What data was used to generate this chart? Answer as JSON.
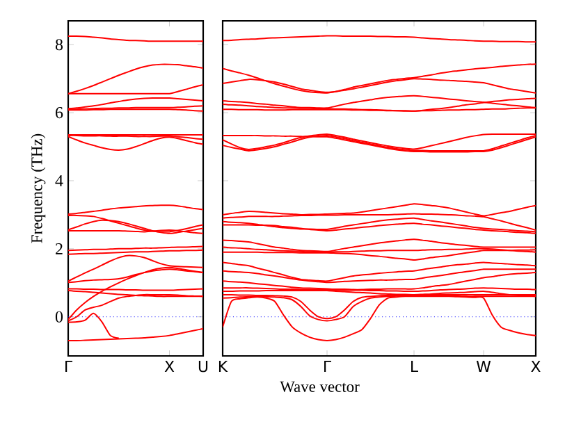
{
  "chart_data": [
    {
      "type": "line",
      "ylabel": "Frequency (THz)",
      "ylim": [
        -1.15,
        8.7
      ],
      "categories": [
        "Γ",
        null,
        null,
        null,
        null,
        null,
        null,
        null,
        null,
        null,
        null,
        null,
        "X",
        null,
        null,
        null,
        "U"
      ],
      "yticks": [
        0,
        2,
        4,
        6,
        8
      ],
      "grid": false,
      "ref_lines": [
        {
          "axis": "y",
          "value": 0,
          "color": "#0000ff",
          "line_style": "dotted"
        }
      ],
      "series": [
        {
          "color": "#ff0000",
          "values": [
            8.25,
            8.25,
            8.24,
            8.22,
            8.2,
            8.17,
            8.15,
            8.13,
            8.12,
            8.11,
            8.1,
            8.1,
            8.1,
            8.1,
            8.1,
            8.1,
            8.1
          ]
        },
        {
          "color": "#ff0000",
          "values": [
            6.56,
            6.63,
            6.71,
            6.8,
            6.9,
            7.0,
            7.1,
            7.19,
            7.28,
            7.35,
            7.4,
            7.42,
            7.42,
            7.41,
            7.38,
            7.35,
            7.31
          ]
        },
        {
          "color": "#ff0000",
          "values": [
            6.56,
            6.56,
            6.56,
            6.56,
            6.56,
            6.56,
            6.56,
            6.56,
            6.56,
            6.56,
            6.56,
            6.56,
            6.56,
            6.62,
            6.69,
            6.76,
            6.82
          ]
        },
        {
          "color": "#ff0000",
          "values": [
            6.12,
            6.14,
            6.17,
            6.2,
            6.24,
            6.29,
            6.33,
            6.37,
            6.4,
            6.42,
            6.43,
            6.43,
            6.43,
            6.41,
            6.39,
            6.37,
            6.35
          ]
        },
        {
          "color": "#ff0000",
          "values": [
            6.1,
            6.1,
            6.11,
            6.12,
            6.13,
            6.13,
            6.14,
            6.14,
            6.15,
            6.15,
            6.15,
            6.15,
            6.15,
            6.16,
            6.17,
            6.19,
            6.2
          ]
        },
        {
          "color": "#ff0000",
          "values": [
            6.08,
            6.08,
            6.08,
            6.09,
            6.09,
            6.1,
            6.1,
            6.1,
            6.1,
            6.1,
            6.1,
            6.1,
            6.1,
            6.09,
            6.08,
            6.06,
            6.05
          ]
        },
        {
          "color": "#ff0000",
          "values": [
            5.35,
            5.35,
            5.35,
            5.35,
            5.35,
            5.35,
            5.35,
            5.35,
            5.35,
            5.35,
            5.35,
            5.35,
            5.35,
            5.35,
            5.35,
            5.35,
            5.35
          ]
        },
        {
          "color": "#ff0000",
          "values": [
            5.3,
            5.2,
            5.11,
            5.04,
            4.97,
            4.92,
            4.9,
            4.93,
            5.0,
            5.09,
            5.18,
            5.25,
            5.28,
            5.24,
            5.18,
            5.12,
            5.07
          ]
        },
        {
          "color": "#ff0000",
          "values": [
            5.33,
            5.33,
            5.32,
            5.32,
            5.32,
            5.31,
            5.31,
            5.31,
            5.3,
            5.3,
            5.3,
            5.31,
            5.31,
            5.29,
            5.27,
            5.24,
            5.22
          ]
        },
        {
          "color": "#ff0000",
          "values": [
            3.02,
            3.04,
            3.07,
            3.1,
            3.13,
            3.17,
            3.2,
            3.22,
            3.24,
            3.26,
            3.27,
            3.28,
            3.28,
            3.26,
            3.22,
            3.18,
            3.15
          ]
        },
        {
          "color": "#ff0000",
          "values": [
            2.98,
            2.98,
            2.97,
            2.95,
            2.89,
            2.82,
            2.75,
            2.68,
            2.61,
            2.55,
            2.52,
            2.5,
            2.5,
            2.54,
            2.59,
            2.65,
            2.7
          ]
        },
        {
          "color": "#ff0000",
          "values": [
            2.56,
            2.64,
            2.73,
            2.8,
            2.84,
            2.83,
            2.8,
            2.74,
            2.67,
            2.6,
            2.53,
            2.48,
            2.45,
            2.48,
            2.52,
            2.56,
            2.6
          ]
        },
        {
          "color": "#ff0000",
          "values": [
            2.53,
            2.53,
            2.53,
            2.53,
            2.53,
            2.53,
            2.53,
            2.52,
            2.51,
            2.5,
            2.52,
            2.54,
            2.55,
            2.53,
            2.5,
            2.47,
            2.45
          ]
        },
        {
          "color": "#ff0000",
          "values": [
            1.95,
            1.96,
            1.97,
            1.98,
            1.98,
            1.99,
            2.0,
            2.0,
            2.01,
            2.02,
            2.02,
            2.03,
            2.04,
            2.05,
            2.05,
            2.06,
            2.07
          ]
        },
        {
          "color": "#ff0000",
          "values": [
            1.84,
            1.85,
            1.86,
            1.86,
            1.87,
            1.88,
            1.89,
            1.9,
            1.91,
            1.91,
            1.92,
            1.93,
            1.94,
            1.94,
            1.95,
            1.95,
            1.96
          ]
        },
        {
          "color": "#ff0000",
          "values": [
            1.05,
            1.17,
            1.29,
            1.4,
            1.52,
            1.64,
            1.74,
            1.8,
            1.79,
            1.74,
            1.65,
            1.56,
            1.5,
            1.48,
            1.47,
            1.46,
            1.45
          ]
        },
        {
          "color": "#ff0000",
          "values": [
            1.01,
            1.03,
            1.06,
            1.08,
            1.09,
            1.1,
            1.12,
            1.17,
            1.24,
            1.3,
            1.35,
            1.38,
            1.4,
            1.38,
            1.35,
            1.33,
            1.3
          ]
        },
        {
          "color": "#ff0000",
          "values": [
            0.82,
            0.82,
            0.81,
            0.81,
            0.8,
            0.8,
            0.8,
            0.79,
            0.79,
            0.78,
            0.78,
            0.78,
            0.78,
            0.79,
            0.8,
            0.81,
            0.82
          ]
        },
        {
          "color": "#ff0000",
          "values": [
            0.77,
            0.75,
            0.74,
            0.72,
            0.7,
            0.68,
            0.66,
            0.65,
            0.63,
            0.62,
            0.61,
            0.6,
            0.6,
            0.6,
            0.6,
            0.6,
            0.6
          ]
        },
        {
          "color": "#ff0000",
          "values": [
            -0.08,
            0.2,
            0.42,
            0.6,
            0.75,
            0.88,
            1.0,
            1.11,
            1.21,
            1.3,
            1.38,
            1.43,
            1.45,
            1.42,
            1.38,
            1.34,
            1.3
          ]
        },
        {
          "color": "#ff0000",
          "values": [
            -0.12,
            0.0,
            0.2,
            0.28,
            0.34,
            0.45,
            0.55,
            0.6,
            0.63,
            0.65,
            0.65,
            0.65,
            0.65,
            0.64,
            0.62,
            0.61,
            0.6
          ]
        },
        {
          "color": "#ff0000",
          "values": [
            -0.7,
            -0.7,
            -0.69,
            -0.68,
            -0.67,
            -0.66,
            -0.65,
            -0.64,
            -0.63,
            -0.62,
            -0.6,
            -0.58,
            -0.55,
            -0.5,
            -0.45,
            -0.4,
            -0.35
          ]
        },
        {
          "color": "#ff0000",
          "values": [
            -0.16,
            -0.15,
            -0.1,
            0.1,
            -0.15,
            -0.55,
            -0.63,
            null,
            null,
            null,
            null,
            null,
            null,
            null,
            null,
            null,
            null
          ]
        }
      ]
    },
    {
      "type": "line",
      "xlabel": "Wave vector",
      "ylim": [
        -1.15,
        8.7
      ],
      "categories": [
        "K",
        null,
        null,
        null,
        null,
        null,
        null,
        null,
        null,
        null,
        null,
        null,
        "Γ",
        null,
        null,
        null,
        null,
        null,
        null,
        null,
        null,
        null,
        "L",
        null,
        null,
        null,
        null,
        null,
        null,
        null,
        "W",
        null,
        null,
        null,
        null,
        null,
        "X"
      ],
      "yticks": [
        0,
        2,
        4,
        6,
        8
      ],
      "tick_labels": "x",
      "grid": false,
      "ref_lines": [
        {
          "axis": "y",
          "value": 0,
          "color": "#0000ff",
          "line_style": "dotted"
        }
      ],
      "series": [
        {
          "color": "#ff0000",
          "values": [
            8.12,
            8.13,
            8.15,
            8.16,
            8.17,
            8.19,
            8.2,
            8.21,
            8.22,
            8.23,
            8.24,
            8.25,
            8.26,
            8.26,
            8.25,
            8.25,
            8.25,
            8.25,
            8.24,
            8.24,
            8.23,
            8.23,
            8.22,
            8.2,
            8.18,
            8.17,
            8.15,
            8.14,
            8.13,
            8.11,
            8.1,
            8.1,
            8.09,
            8.09,
            8.09,
            8.08,
            8.08
          ]
        },
        {
          "color": "#ff0000",
          "values": [
            7.3,
            7.23,
            7.17,
            7.1,
            7.02,
            6.93,
            6.85,
            6.78,
            6.71,
            6.65,
            6.61,
            6.59,
            6.58,
            6.62,
            6.68,
            6.75,
            6.8,
            6.85,
            6.9,
            6.95,
            6.98,
            7.01,
            7.03,
            7.07,
            7.11,
            7.16,
            7.2,
            7.23,
            7.26,
            7.29,
            7.31,
            7.33,
            7.36,
            7.38,
            7.4,
            7.42,
            7.43
          ]
        },
        {
          "color": "#ff0000",
          "values": [
            6.86,
            6.9,
            6.94,
            6.98,
            6.97,
            6.94,
            6.9,
            6.84,
            6.77,
            6.7,
            6.66,
            6.62,
            6.6,
            6.62,
            6.66,
            6.7,
            6.75,
            6.8,
            6.85,
            6.9,
            6.94,
            6.97,
            7.0,
            6.99,
            6.98,
            6.96,
            6.95,
            6.93,
            6.92,
            6.9,
            6.88,
            6.82,
            6.76,
            6.7,
            6.66,
            6.62,
            6.58
          ]
        },
        {
          "color": "#ff0000",
          "values": [
            6.35,
            6.33,
            6.32,
            6.3,
            6.27,
            6.25,
            6.22,
            6.2,
            6.17,
            6.15,
            6.15,
            6.14,
            6.14,
            6.19,
            6.25,
            6.3,
            6.34,
            6.38,
            6.42,
            6.45,
            6.47,
            6.49,
            6.5,
            6.48,
            6.45,
            6.43,
            6.4,
            6.38,
            6.35,
            6.33,
            6.31,
            6.28,
            6.25,
            6.22,
            6.2,
            6.17,
            6.15
          ]
        },
        {
          "color": "#ff0000",
          "values": [
            6.25,
            6.23,
            6.22,
            6.2,
            6.18,
            6.17,
            6.15,
            6.14,
            6.14,
            6.13,
            6.13,
            6.12,
            6.12,
            6.11,
            6.11,
            6.1,
            6.09,
            6.09,
            6.08,
            6.07,
            6.06,
            6.06,
            6.05,
            6.07,
            6.1,
            6.12,
            6.15,
            6.19,
            6.23,
            6.26,
            6.3,
            6.33,
            6.35,
            6.38,
            6.39,
            6.41,
            6.42
          ]
        },
        {
          "color": "#ff0000",
          "values": [
            6.1,
            6.1,
            6.09,
            6.09,
            6.09,
            6.08,
            6.08,
            6.08,
            6.09,
            6.09,
            6.09,
            6.09,
            6.09,
            6.09,
            6.09,
            6.08,
            6.08,
            6.07,
            6.07,
            6.06,
            6.06,
            6.05,
            6.05,
            6.06,
            6.06,
            6.07,
            6.08,
            6.08,
            6.09,
            6.09,
            6.1,
            6.11,
            6.11,
            6.12,
            6.13,
            6.14,
            6.14
          ]
        },
        {
          "color": "#ff0000",
          "values": [
            5.2,
            5.08,
            4.97,
            4.92,
            4.95,
            5.0,
            5.05,
            5.12,
            5.2,
            5.27,
            5.32,
            5.35,
            5.37,
            5.33,
            5.28,
            5.22,
            5.17,
            5.12,
            5.07,
            5.02,
            4.98,
            4.95,
            4.93,
            4.97,
            5.03,
            5.09,
            5.15,
            5.21,
            5.27,
            5.32,
            5.36,
            5.37,
            5.37,
            5.37,
            5.37,
            5.37,
            5.37
          ]
        },
        {
          "color": "#ff0000",
          "values": [
            5.04,
            4.98,
            4.93,
            4.88,
            4.91,
            4.95,
            5.0,
            5.07,
            5.14,
            5.22,
            5.28,
            5.31,
            5.33,
            5.29,
            5.24,
            5.18,
            5.13,
            5.08,
            5.03,
            4.98,
            4.94,
            4.91,
            4.89,
            4.89,
            4.88,
            4.88,
            4.88,
            4.88,
            4.88,
            4.88,
            4.88,
            4.94,
            5.02,
            5.1,
            5.18,
            5.26,
            5.33
          ]
        },
        {
          "color": "#ff0000",
          "values": [
            5.33,
            5.33,
            5.33,
            5.33,
            5.33,
            5.32,
            5.32,
            5.31,
            5.31,
            5.3,
            5.3,
            5.29,
            5.29,
            5.25,
            5.2,
            5.15,
            5.1,
            5.05,
            5.0,
            4.95,
            4.91,
            4.88,
            4.86,
            4.86,
            4.85,
            4.85,
            4.85,
            4.85,
            4.85,
            4.86,
            4.86,
            4.9,
            4.97,
            5.05,
            5.13,
            5.21,
            5.29
          ]
        },
        {
          "color": "#ff0000",
          "values": [
            3.0,
            3.04,
            3.07,
            3.1,
            3.09,
            3.07,
            3.05,
            3.03,
            3.02,
            3.0,
            3.01,
            3.01,
            3.02,
            3.03,
            3.04,
            3.05,
            3.08,
            3.12,
            3.16,
            3.2,
            3.24,
            3.28,
            3.32,
            3.3,
            3.27,
            3.24,
            3.2,
            3.14,
            3.08,
            3.02,
            2.97,
            3.01,
            3.06,
            3.1,
            3.16,
            3.22,
            3.27
          ]
        },
        {
          "color": "#ff0000",
          "values": [
            2.9,
            2.92,
            2.93,
            2.95,
            2.95,
            2.95,
            2.95,
            2.96,
            2.97,
            2.98,
            2.98,
            2.99,
            2.99,
            2.99,
            3.0,
            3.0,
            3.0,
            3.0,
            3.0,
            3.0,
            3.01,
            3.02,
            3.03,
            3.02,
            3.02,
            3.01,
            3.0,
            2.99,
            2.97,
            2.96,
            2.94,
            2.88,
            2.82,
            2.75,
            2.68,
            2.62,
            2.55
          ]
        },
        {
          "color": "#ff0000",
          "values": [
            2.8,
            2.78,
            2.77,
            2.75,
            2.72,
            2.68,
            2.65,
            2.62,
            2.6,
            2.58,
            2.58,
            2.57,
            2.57,
            2.61,
            2.66,
            2.7,
            2.74,
            2.78,
            2.82,
            2.85,
            2.87,
            2.89,
            2.9,
            2.86,
            2.82,
            2.79,
            2.75,
            2.71,
            2.67,
            2.63,
            2.6,
            2.58,
            2.57,
            2.55,
            2.53,
            2.52,
            2.5
          ]
        },
        {
          "color": "#ff0000",
          "values": [
            2.7,
            2.7,
            2.7,
            2.7,
            2.69,
            2.69,
            2.68,
            2.65,
            2.63,
            2.6,
            2.57,
            2.55,
            2.53,
            2.55,
            2.58,
            2.6,
            2.63,
            2.65,
            2.68,
            2.7,
            2.72,
            2.74,
            2.75,
            2.72,
            2.7,
            2.67,
            2.65,
            2.62,
            2.6,
            2.57,
            2.55,
            2.53,
            2.52,
            2.5,
            2.48,
            2.47,
            2.45
          ]
        },
        {
          "color": "#ff0000",
          "values": [
            2.25,
            2.24,
            2.22,
            2.2,
            2.15,
            2.1,
            2.05,
            2.02,
            1.98,
            1.95,
            1.94,
            1.93,
            1.92,
            1.96,
            2.01,
            2.05,
            2.09,
            2.13,
            2.17,
            2.2,
            2.23,
            2.26,
            2.28,
            2.25,
            2.22,
            2.18,
            2.15,
            2.12,
            2.1,
            2.07,
            2.05,
            2.05,
            2.05,
            2.05,
            2.05,
            2.05,
            2.05
          ]
        },
        {
          "color": "#ff0000",
          "values": [
            2.05,
            2.03,
            2.02,
            2.0,
            1.98,
            1.97,
            1.95,
            1.94,
            1.93,
            1.92,
            1.91,
            1.91,
            1.9,
            1.91,
            1.91,
            1.92,
            1.93,
            1.94,
            1.94,
            1.95,
            1.95,
            1.95,
            1.95,
            1.96,
            1.97,
            1.97,
            1.98,
            1.98,
            1.99,
            2.0,
            2.0,
            1.99,
            1.97,
            1.95,
            1.93,
            1.92,
            1.9
          ]
        },
        {
          "color": "#ff0000",
          "values": [
            1.9,
            1.9,
            1.9,
            1.9,
            1.9,
            1.89,
            1.89,
            1.89,
            1.89,
            1.88,
            1.88,
            1.88,
            1.88,
            1.87,
            1.86,
            1.85,
            1.83,
            1.8,
            1.78,
            1.75,
            1.72,
            1.7,
            1.67,
            1.7,
            1.74,
            1.77,
            1.8,
            1.84,
            1.88,
            1.91,
            1.95,
            1.95,
            1.95,
            1.95,
            1.96,
            1.96,
            1.97
          ]
        },
        {
          "color": "#ff0000",
          "values": [
            1.6,
            1.57,
            1.53,
            1.5,
            1.43,
            1.37,
            1.3,
            1.23,
            1.16,
            1.1,
            1.08,
            1.06,
            1.05,
            1.1,
            1.15,
            1.2,
            1.23,
            1.25,
            1.28,
            1.3,
            1.32,
            1.34,
            1.35,
            1.39,
            1.43,
            1.46,
            1.5,
            1.53,
            1.55,
            1.58,
            1.6,
            1.58,
            1.57,
            1.55,
            1.53,
            1.52,
            1.5
          ]
        },
        {
          "color": "#ff0000",
          "values": [
            1.35,
            1.33,
            1.32,
            1.3,
            1.27,
            1.23,
            1.2,
            1.16,
            1.12,
            1.08,
            1.05,
            1.03,
            1.01,
            1.02,
            1.04,
            1.05,
            1.06,
            1.07,
            1.08,
            1.08,
            1.09,
            1.1,
            1.1,
            1.14,
            1.18,
            1.21,
            1.25,
            1.29,
            1.33,
            1.36,
            1.4,
            1.4,
            1.4,
            1.4,
            1.4,
            1.4,
            1.4
          ]
        },
        {
          "color": "#ff0000",
          "values": [
            1.05,
            1.03,
            1.02,
            1.0,
            0.97,
            0.95,
            0.92,
            0.9,
            0.87,
            0.85,
            0.84,
            0.83,
            0.82,
            0.81,
            0.81,
            0.8,
            0.8,
            0.81,
            0.81,
            0.82,
            0.82,
            0.82,
            0.82,
            0.85,
            0.89,
            0.92,
            0.95,
            1.0,
            1.05,
            1.1,
            1.15,
            1.18,
            1.22,
            1.25,
            1.27,
            1.28,
            1.3
          ]
        },
        {
          "color": "#ff0000",
          "values": [
            0.85,
            0.85,
            0.85,
            0.85,
            0.84,
            0.83,
            0.82,
            0.81,
            0.81,
            0.8,
            0.8,
            0.79,
            0.79,
            0.79,
            0.78,
            0.78,
            0.78,
            0.77,
            0.77,
            0.76,
            0.76,
            0.75,
            0.75,
            0.76,
            0.77,
            0.79,
            0.8,
            0.81,
            0.82,
            0.84,
            0.85,
            0.84,
            0.83,
            0.82,
            0.81,
            0.81,
            0.8
          ]
        },
        {
          "color": "#ff0000",
          "values": [
            0.75,
            0.75,
            0.76,
            0.76,
            0.76,
            0.77,
            0.77,
            0.77,
            0.77,
            0.77,
            0.77,
            0.77,
            0.77,
            0.75,
            0.74,
            0.72,
            0.71,
            0.7,
            0.68,
            0.67,
            0.66,
            0.66,
            0.65,
            0.66,
            0.67,
            0.69,
            0.7,
            0.71,
            0.72,
            0.74,
            0.75,
            0.72,
            0.68,
            0.65,
            0.63,
            0.62,
            0.6
          ]
        },
        {
          "color": "#ff0000",
          "values": [
            -0.3,
            0.45,
            0.53,
            0.56,
            0.58,
            0.55,
            0.45,
            0.05,
            -0.3,
            -0.48,
            -0.6,
            -0.67,
            -0.7,
            -0.67,
            -0.6,
            -0.5,
            -0.38,
            -0.05,
            0.35,
            0.55,
            0.58,
            0.6,
            0.6,
            0.6,
            0.6,
            0.6,
            0.6,
            0.59,
            0.58,
            0.57,
            0.55,
            0.05,
            -0.3,
            -0.4,
            -0.47,
            -0.52,
            -0.55
          ]
        },
        {
          "color": "#ff0000",
          "values": [
            0.55,
            0.56,
            0.58,
            0.59,
            0.6,
            0.59,
            0.58,
            0.56,
            0.5,
            0.3,
            0.03,
            -0.08,
            -0.12,
            -0.08,
            0.0,
            0.3,
            0.45,
            0.55,
            0.58,
            0.6,
            0.61,
            0.62,
            0.62,
            0.62,
            0.62,
            0.61,
            0.61,
            0.61,
            0.6,
            0.6,
            0.6,
            0.6,
            0.6,
            0.6,
            0.6,
            0.6,
            0.6
          ]
        },
        {
          "color": "#ff0000",
          "values": [
            0.65,
            0.65,
            0.64,
            0.64,
            0.63,
            0.63,
            0.62,
            0.61,
            0.58,
            0.45,
            0.2,
            0.0,
            -0.05,
            0.0,
            0.2,
            0.45,
            0.57,
            0.6,
            0.62,
            0.63,
            0.64,
            0.65,
            0.65,
            0.65,
            0.65,
            0.65,
            0.65,
            0.65,
            0.65,
            0.65,
            0.65,
            0.65,
            0.65,
            0.65,
            0.65,
            0.65,
            0.65
          ]
        }
      ]
    }
  ]
}
